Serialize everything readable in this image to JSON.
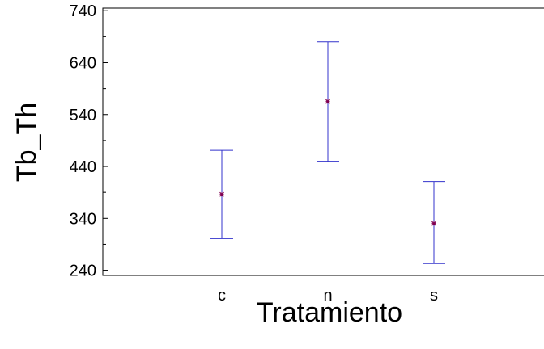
{
  "chart_data": {
    "type": "errorbar",
    "xlabel": "Tratamiento",
    "ylabel": "Tb_Th",
    "categories": [
      "c",
      "n",
      "s"
    ],
    "series": [
      {
        "mean": [
          386,
          565,
          330
        ],
        "lower": [
          301,
          450,
          253
        ],
        "upper": [
          471,
          680,
          411
        ]
      }
    ],
    "ylim": [
      230,
      745
    ],
    "yticks": [
      240,
      340,
      440,
      540,
      640,
      740
    ],
    "grid": false,
    "colors": {
      "bar": "#3333cc",
      "marker": "#800050",
      "axis": "#000000"
    }
  }
}
